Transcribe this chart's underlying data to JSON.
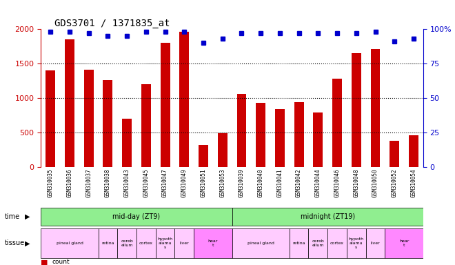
{
  "title": "GDS3701 / 1371835_at",
  "samples": [
    "GSM310035",
    "GSM310036",
    "GSM310037",
    "GSM310038",
    "GSM310043",
    "GSM310045",
    "GSM310047",
    "GSM310049",
    "GSM310051",
    "GSM310053",
    "GSM310039",
    "GSM310040",
    "GSM310041",
    "GSM310042",
    "GSM310044",
    "GSM310046",
    "GSM310048",
    "GSM310050",
    "GSM310052",
    "GSM310054"
  ],
  "counts": [
    1400,
    1850,
    1410,
    1260,
    700,
    1200,
    1800,
    1960,
    320,
    490,
    1060,
    930,
    840,
    940,
    790,
    1280,
    1650,
    1710,
    380,
    460
  ],
  "percentile": [
    98,
    98,
    97,
    95,
    95,
    98,
    98,
    98,
    90,
    93,
    97,
    97,
    97,
    97,
    97,
    97,
    97,
    98,
    91,
    93
  ],
  "ylim_left": [
    0,
    2000
  ],
  "ylim_right": [
    0,
    100
  ],
  "yticks_left": [
    0,
    500,
    1000,
    1500,
    2000
  ],
  "yticks_right": [
    0,
    25,
    50,
    75,
    100
  ],
  "left_axis_color": "#cc0000",
  "right_axis_color": "#0000cc",
  "bar_color": "#cc0000",
  "dot_color": "#0000cc",
  "time_groups": [
    {
      "label": "mid-day (ZT9)",
      "start": 0,
      "end": 10,
      "color": "#90ee90"
    },
    {
      "label": "midnight (ZT19)",
      "start": 10,
      "end": 20,
      "color": "#90ee90"
    }
  ],
  "tissue_groups": [
    {
      "label": "pineal gland",
      "start": 0,
      "end": 3,
      "color": "#ffccff"
    },
    {
      "label": "retina",
      "start": 3,
      "end": 4,
      "color": "#ffccff"
    },
    {
      "label": "cereb\nellum",
      "start": 4,
      "end": 5,
      "color": "#ffccff"
    },
    {
      "label": "cortex",
      "start": 5,
      "end": 6,
      "color": "#ffccff"
    },
    {
      "label": "hypoth\nalamu\ns",
      "start": 6,
      "end": 7,
      "color": "#ffccff"
    },
    {
      "label": "liver",
      "start": 7,
      "end": 8,
      "color": "#ffccff"
    },
    {
      "label": "hear\nt",
      "start": 8,
      "end": 10,
      "color": "#ffaaff"
    },
    {
      "label": "pineal gland",
      "start": 10,
      "end": 13,
      "color": "#ffccff"
    },
    {
      "label": "retina",
      "start": 13,
      "end": 14,
      "color": "#ffccff"
    },
    {
      "label": "cereb\nellum",
      "start": 14,
      "end": 15,
      "color": "#ffccff"
    },
    {
      "label": "cortex",
      "start": 15,
      "end": 16,
      "color": "#ffccff"
    },
    {
      "label": "hypoth\nalamu\ns",
      "start": 16,
      "end": 17,
      "color": "#ffccff"
    },
    {
      "label": "liver",
      "start": 17,
      "end": 18,
      "color": "#ffccff"
    },
    {
      "label": "hear\nt",
      "start": 18,
      "end": 20,
      "color": "#ffaaff"
    }
  ],
  "background_color": "#ffffff",
  "grid_color": "#000000",
  "tick_label_color_left": "#cc0000",
  "tick_label_color_right": "#0000cc"
}
